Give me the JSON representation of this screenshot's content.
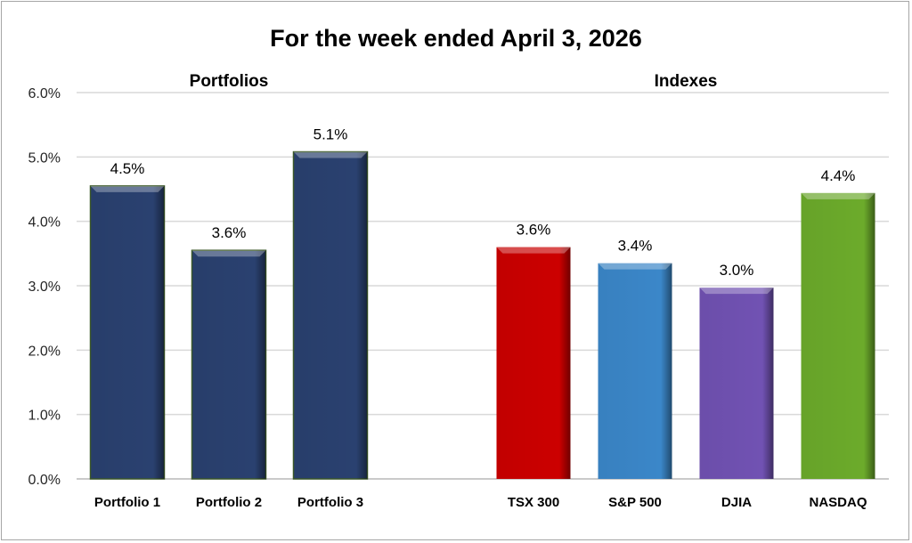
{
  "chart_data": {
    "type": "bar",
    "title": "For the week ended April 3, 2026",
    "groups": [
      {
        "label": "Portfolios",
        "categories": [
          "Portfolio 1",
          "Portfolio 2",
          "Portfolio 3"
        ]
      },
      {
        "label": "Indexes",
        "categories": [
          "TSX 300",
          "S&P 500",
          "DJIA",
          "NASDAQ"
        ]
      }
    ],
    "categories": [
      "Portfolio 1",
      "Portfolio 2",
      "Portfolio 3",
      "TSX 300",
      "S&P 500",
      "DJIA",
      "NASDAQ"
    ],
    "values": [
      4.55,
      3.55,
      5.08,
      3.6,
      3.35,
      2.97,
      4.44
    ],
    "data_labels": [
      "4.5%",
      "3.6%",
      "5.1%",
      "3.6%",
      "3.4%",
      "3.0%",
      "4.4%"
    ],
    "colors": [
      "#2a4170",
      "#2a4170",
      "#2a4170",
      "#cc0000",
      "#3b87c9",
      "#7152b3",
      "#6cab2b"
    ],
    "ylim": [
      0,
      6
    ],
    "yticks": [
      "0.0%",
      "1.0%",
      "2.0%",
      "3.0%",
      "4.0%",
      "5.0%",
      "6.0%"
    ],
    "xlabel": "",
    "ylabel": "",
    "grid": true,
    "legend": "none"
  }
}
